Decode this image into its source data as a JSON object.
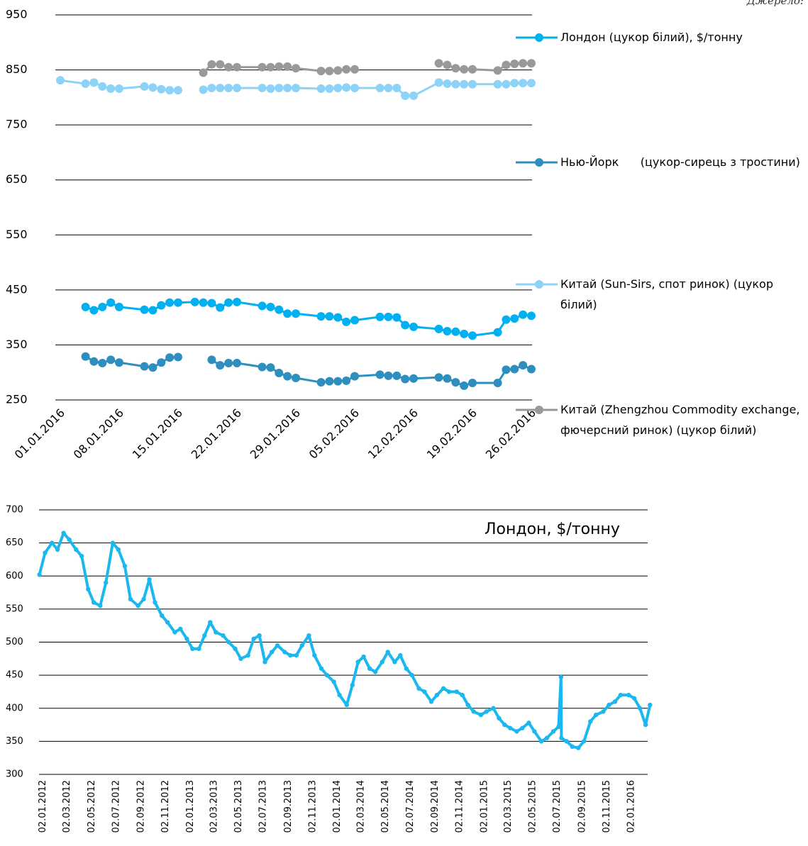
{
  "chart_data": [
    {
      "type": "line",
      "source": "Джерело:",
      "x": [
        "01.01.2016",
        "04.01.2016",
        "05.01.2016",
        "06.01.2016",
        "07.01.2016",
        "08.01.2016",
        "11.01.2016",
        "12.01.2016",
        "13.01.2016",
        "14.01.2016",
        "15.01.2016",
        "17.01.2016",
        "18.01.2016",
        "19.01.2016",
        "20.01.2016",
        "21.01.2016",
        "22.01.2016",
        "25.01.2016",
        "26.01.2016",
        "27.01.2016",
        "28.01.2016",
        "29.01.2016",
        "01.02.2016",
        "02.02.2016",
        "03.02.2016",
        "04.02.2016",
        "05.02.2016",
        "08.02.2016",
        "09.02.2016",
        "10.02.2016",
        "11.02.2016",
        "12.02.2016",
        "15.02.2016",
        "16.02.2016",
        "17.02.2016",
        "18.02.2016",
        "19.02.2016",
        "22.02.2016",
        "23.02.2016",
        "24.02.2016",
        "25.02.2016",
        "26.02.2016"
      ],
      "xlim": [
        "01.01.2016",
        "26.02.2016"
      ],
      "xticks": [
        "01.01.2016",
        "08.01.2016",
        "15.01.2016",
        "22.01.2016",
        "29.01.2016",
        "05.02.2016",
        "12.02.2016",
        "19.02.2016",
        "26.02.2016"
      ],
      "ylim": [
        250,
        950
      ],
      "yticks": [
        250,
        350,
        450,
        550,
        650,
        750,
        850,
        950
      ],
      "grid": true,
      "legend": "right",
      "series": [
        {
          "name": "Лондон (цукор білий), $/тонну",
          "color": "#00b0f0",
          "values": [
            null,
            419,
            413,
            419,
            427,
            419,
            414,
            413,
            422,
            427,
            427,
            428,
            427,
            426,
            418,
            427,
            428,
            421,
            419,
            414,
            407,
            407,
            402,
            402,
            400,
            392,
            395,
            401,
            401,
            400,
            386,
            383,
            379,
            375,
            374,
            370,
            367,
            373,
            396,
            398,
            405,
            403
          ]
        },
        {
          "name": "Нью-Йорк      (цукор-сирець з тростини)",
          "color": "#2e8fbf",
          "values": [
            null,
            329,
            320,
            317,
            323,
            318,
            311,
            309,
            318,
            327,
            328,
            null,
            null,
            323,
            313,
            317,
            317,
            310,
            309,
            299,
            293,
            290,
            282,
            284,
            284,
            285,
            293,
            296,
            294,
            294,
            288,
            289,
            291,
            289,
            282,
            276,
            281,
            281,
            305,
            306,
            313,
            306
          ]
        },
        {
          "name": "Китай (Sun-Sirs, спот ринок) (цукор білий)",
          "color": "#8dd3f7",
          "values": [
            831,
            825,
            827,
            820,
            816,
            816,
            820,
            818,
            815,
            813,
            813,
            null,
            814,
            817,
            817,
            817,
            817,
            817,
            816,
            817,
            817,
            817,
            816,
            816,
            817,
            818,
            817,
            817,
            817,
            817,
            803,
            803,
            827,
            825,
            824,
            824,
            824,
            824,
            824,
            826,
            826,
            826
          ]
        },
        {
          "name": "Китай (Zhengzhou Commodity exchange, фючерсний ринок) (цукор білий)",
          "color": "#999999",
          "values": [
            null,
            null,
            null,
            null,
            null,
            null,
            null,
            null,
            null,
            null,
            null,
            null,
            845,
            860,
            860,
            855,
            855,
            855,
            855,
            856,
            856,
            853,
            848,
            848,
            849,
            851,
            851,
            null,
            null,
            null,
            null,
            null,
            862,
            859,
            853,
            851,
            851,
            849,
            859,
            861,
            862,
            862
          ]
        }
      ]
    },
    {
      "type": "line",
      "title": "Лондон, $/тонну",
      "color": "#1ab8ef",
      "x": [
        "02.01.2012",
        "16.01.2012",
        "02.02.2012",
        "16.02.2012",
        "02.03.2012",
        "16.03.2012",
        "02.04.2012",
        "16.04.2012",
        "02.05.2012",
        "16.05.2012",
        "01.06.2012",
        "15.06.2012",
        "02.07.2012",
        "16.07.2012",
        "01.08.2012",
        "15.08.2012",
        "03.09.2012",
        "17.09.2012",
        "01.10.2012",
        "15.10.2012",
        "01.11.2012",
        "15.11.2012",
        "03.12.2012",
        "17.12.2012",
        "02.01.2013",
        "16.01.2013",
        "01.02.2013",
        "15.02.2013",
        "01.03.2013",
        "15.03.2013",
        "02.04.2013",
        "16.04.2013",
        "02.05.2013",
        "16.05.2013",
        "03.06.2013",
        "17.06.2013",
        "01.07.2013",
        "15.07.2013",
        "01.08.2013",
        "15.08.2013",
        "02.09.2013",
        "16.09.2013",
        "01.10.2013",
        "15.10.2013",
        "01.11.2013",
        "15.11.2013",
        "02.12.2013",
        "16.12.2013",
        "02.01.2014",
        "16.01.2014",
        "03.02.2014",
        "17.02.2014",
        "03.03.2014",
        "17.03.2014",
        "01.04.2014",
        "15.04.2014",
        "02.05.2014",
        "16.05.2014",
        "02.06.2014",
        "16.06.2014",
        "01.07.2014",
        "15.07.2014",
        "01.08.2014",
        "15.08.2014",
        "01.09.2014",
        "15.09.2014",
        "01.10.2014",
        "15.10.2014",
        "03.11.2014",
        "17.11.2014",
        "01.12.2014",
        "15.12.2014",
        "02.01.2015",
        "16.01.2015",
        "02.02.2015",
        "16.02.2015",
        "02.03.2015",
        "16.03.2015",
        "01.04.2015",
        "15.04.2015",
        "01.05.2015",
        "15.05.2015",
        "01.06.2015",
        "15.06.2015",
        "01.07.2015",
        "14.07.2015",
        "20.07.2015",
        "21.07.2015",
        "03.08.2015",
        "17.08.2015",
        "01.09.2015",
        "15.09.2015",
        "01.10.2015",
        "15.10.2015",
        "02.11.2015",
        "16.11.2015",
        "01.12.2015",
        "15.12.2015",
        "04.01.2016",
        "18.01.2016",
        "01.02.2016",
        "15.02.2016",
        "26.02.2016"
      ],
      "values": [
        602,
        635,
        650,
        640,
        665,
        655,
        640,
        630,
        580,
        560,
        555,
        590,
        650,
        640,
        615,
        565,
        555,
        565,
        595,
        560,
        540,
        530,
        515,
        520,
        505,
        490,
        490,
        510,
        530,
        515,
        510,
        500,
        490,
        475,
        480,
        505,
        510,
        470,
        485,
        495,
        485,
        480,
        480,
        495,
        510,
        480,
        460,
        450,
        440,
        420,
        405,
        435,
        470,
        478,
        460,
        455,
        470,
        485,
        470,
        480,
        460,
        450,
        430,
        425,
        410,
        420,
        430,
        425,
        425,
        420,
        405,
        395,
        390,
        395,
        400,
        385,
        375,
        370,
        365,
        370,
        378,
        365,
        350,
        355,
        365,
        372,
        447,
        355,
        350,
        342,
        340,
        350,
        380,
        390,
        395,
        405,
        410,
        420,
        420,
        415,
        400,
        375,
        405
      ],
      "xlim": [
        "01.01.2012",
        "29.02.2016"
      ],
      "xticks": [
        "02.01.2012",
        "02.03.2012",
        "02.05.2012",
        "02.07.2012",
        "02.09.2012",
        "02.11.2012",
        "02.01.2013",
        "02.03.2013",
        "02.05.2013",
        "02.07.2013",
        "02.09.2013",
        "02.11.2013",
        "02.01.2014",
        "02.03.2014",
        "02.05.2014",
        "02.07.2014",
        "02.09.2014",
        "02.11.2014",
        "02.01.2015",
        "02.03.2015",
        "02.05.2015",
        "02.07.2015",
        "02.09.2015",
        "02.11.2015",
        "02.01.2016"
      ],
      "ylim": [
        300,
        700
      ],
      "yticks": [
        300,
        350,
        400,
        450,
        500,
        550,
        600,
        650,
        700
      ],
      "grid": true
    }
  ]
}
